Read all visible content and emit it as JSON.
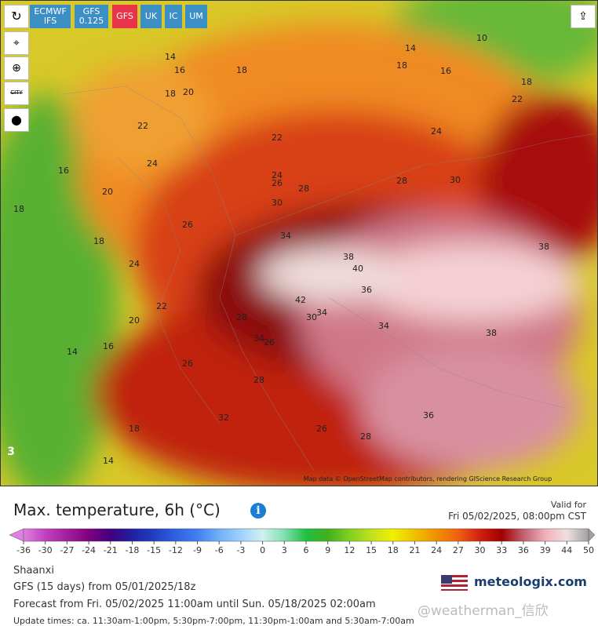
{
  "toolbar": {
    "models": [
      {
        "name": "ECMWF",
        "sub": "IFS"
      },
      {
        "name": "GFS",
        "sub": "0.125"
      },
      {
        "name": "GFS"
      },
      {
        "name": "UK"
      },
      {
        "name": "IC"
      },
      {
        "name": "UM"
      }
    ],
    "city_button": "CITY"
  },
  "map": {
    "contour_labels": [
      14,
      16,
      18,
      18,
      20,
      22,
      22,
      14,
      18,
      16,
      10,
      18,
      22,
      24,
      16,
      24,
      20,
      24,
      26,
      28,
      28,
      30,
      18,
      26,
      30,
      18,
      34,
      38,
      40,
      38,
      24,
      36,
      42,
      22,
      20,
      28,
      30,
      34,
      34,
      38,
      16,
      14,
      34,
      26,
      26,
      28,
      36,
      32,
      26,
      28,
      18,
      14
    ],
    "corner_label": "3",
    "attribution": "Map data © OpenStreetMap contributors, rendering GIScience Research Group"
  },
  "header": {
    "title": "Max. temperature, 6h (°C)",
    "valid_label": "Valid for",
    "valid_time": "Fri 05/02/2025, 08:00pm CST"
  },
  "colorbar": {
    "labels": [
      -36,
      -30,
      -27,
      -24,
      -21,
      -18,
      -15,
      -12,
      -9,
      -6,
      -3,
      0,
      3,
      6,
      9,
      12,
      15,
      18,
      21,
      24,
      27,
      30,
      33,
      36,
      39,
      44,
      50
    ],
    "colors": [
      "#e080e0",
      "#c040c0",
      "#a020a0",
      "#800080",
      "#400080",
      "#2020a0",
      "#2040c0",
      "#3060e0",
      "#4080f0",
      "#70b0f8",
      "#a0d0ff",
      "#d0f0f0",
      "#80e0b0",
      "#20c040",
      "#40b020",
      "#80d020",
      "#c0e020",
      "#f0f000",
      "#f0c000",
      "#f09000",
      "#f06010",
      "#d02010",
      "#a00000",
      "#c06070",
      "#f0b0b8",
      "#f0e0e0",
      "#a0a0a0"
    ]
  },
  "info": {
    "region": "Shaanxi",
    "model_run": "GFS (15 days) from 05/01/2025/18z",
    "forecast_range": "Forecast from Fri. 05/02/2025 11:00am until Sun. 05/18/2025 02:00am",
    "update_times": "Update times: ca. 11:30am-1:00pm, 5:30pm-7:00pm, 11:30pm-1:00am and 5:30am-7:00am"
  },
  "branding": {
    "logo": "meteologix.com",
    "watermark": "@weatherman_信欣"
  }
}
